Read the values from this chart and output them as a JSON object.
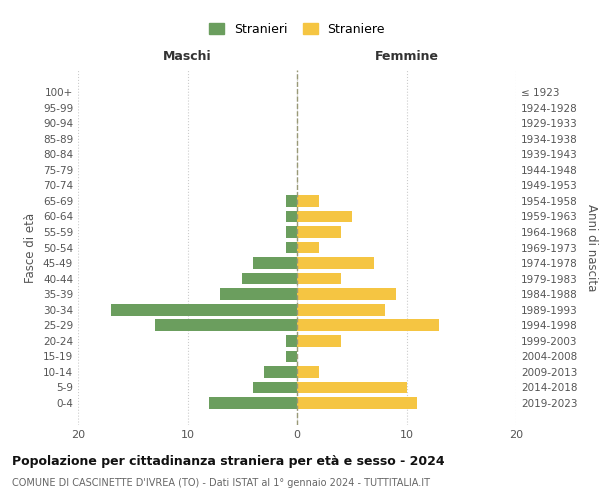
{
  "age_groups": [
    "0-4",
    "5-9",
    "10-14",
    "15-19",
    "20-24",
    "25-29",
    "30-34",
    "35-39",
    "40-44",
    "45-49",
    "50-54",
    "55-59",
    "60-64",
    "65-69",
    "70-74",
    "75-79",
    "80-84",
    "85-89",
    "90-94",
    "95-99",
    "100+"
  ],
  "birth_years": [
    "2019-2023",
    "2014-2018",
    "2009-2013",
    "2004-2008",
    "1999-2003",
    "1994-1998",
    "1989-1993",
    "1984-1988",
    "1979-1983",
    "1974-1978",
    "1969-1973",
    "1964-1968",
    "1959-1963",
    "1954-1958",
    "1949-1953",
    "1944-1948",
    "1939-1943",
    "1934-1938",
    "1929-1933",
    "1924-1928",
    "≤ 1923"
  ],
  "maschi": [
    8,
    4,
    3,
    1,
    1,
    13,
    17,
    7,
    5,
    4,
    1,
    1,
    1,
    1,
    0,
    0,
    0,
    0,
    0,
    0,
    0
  ],
  "femmine": [
    11,
    10,
    2,
    0,
    4,
    13,
    8,
    9,
    4,
    7,
    2,
    4,
    5,
    2,
    0,
    0,
    0,
    0,
    0,
    0,
    0
  ],
  "color_maschi": "#6b9e5e",
  "color_femmine": "#f5c542",
  "background_color": "#ffffff",
  "grid_color": "#cccccc",
  "title": "Popolazione per cittadinanza straniera per età e sesso - 2024",
  "subtitle": "COMUNE DI CASCINETTE D'IVREA (TO) - Dati ISTAT al 1° gennaio 2024 - TUTTITALIA.IT",
  "ylabel_left": "Fasce di età",
  "ylabel_right": "Anni di nascita",
  "label_maschi": "Maschi",
  "label_femmine": "Femmine",
  "legend_stranieri": "Stranieri",
  "legend_straniere": "Straniere",
  "xlim": 20,
  "xticks": [
    -20,
    -10,
    0,
    10,
    20
  ],
  "xticklabels": [
    "20",
    "10",
    "0",
    "10",
    "20"
  ]
}
